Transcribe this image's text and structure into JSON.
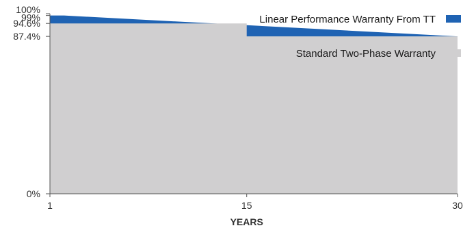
{
  "chart_data": {
    "type": "area",
    "xlabel": "YEARS",
    "ylabel": "",
    "xlim": [
      1,
      30
    ],
    "ylim": [
      0,
      100
    ],
    "x_ticks": [
      {
        "value": 1,
        "label": "1"
      },
      {
        "value": 15,
        "label": "15"
      },
      {
        "value": 30,
        "label": "30"
      }
    ],
    "y_ticks": [
      {
        "value": 0,
        "label": "0%"
      },
      {
        "value": 87.4,
        "label": "87.4%"
      },
      {
        "value": 94.6,
        "label": "94.6%"
      },
      {
        "value": 99,
        "label": "99%"
      },
      {
        "value": 100,
        "label": "100%"
      }
    ],
    "series": [
      {
        "name": "Linear Performance Warranty From TT",
        "color": "#1f63b3",
        "points": [
          [
            1,
            99
          ],
          [
            2,
            99
          ],
          [
            30,
            87.4
          ]
        ]
      },
      {
        "name": "Standard Two-Phase Warranty",
        "color": "#d0cfd0",
        "points": [
          [
            1,
            94.6
          ],
          [
            15,
            94.6
          ],
          [
            15,
            87.4
          ],
          [
            30,
            87.4
          ]
        ]
      }
    ],
    "legend_position": "top-right",
    "grid": false
  }
}
